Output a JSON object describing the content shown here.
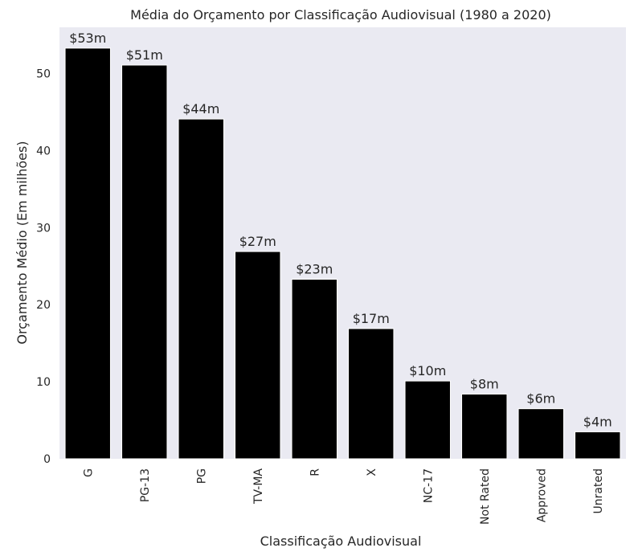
{
  "chart_data": {
    "type": "bar",
    "title": "Média do Orçamento por Classificação Audiovisual (1980 a 2020)",
    "xlabel": "Classificação Audiovisual",
    "ylabel": "Orçamento Médio (Em milhões)",
    "categories": [
      "G",
      "PG-13",
      "PG",
      "TV-MA",
      "R",
      "X",
      "NC-17",
      "Not Rated",
      "Approved",
      "Unrated"
    ],
    "values": [
      53.3,
      51.1,
      44.1,
      26.9,
      23.3,
      16.9,
      10.1,
      8.4,
      6.5,
      3.5
    ],
    "data_labels": [
      "$53m",
      "$51m",
      "$44m",
      "$27m",
      "$23m",
      "$17m",
      "$10m",
      "$8m",
      "$6m",
      "$4m"
    ],
    "yticks": [
      0,
      10,
      20,
      30,
      40,
      50
    ],
    "ylim": [
      0,
      56
    ],
    "grid": false,
    "colors": {
      "bar": "#000000",
      "bar_edge": "#ffffff",
      "background": "#eaeaf2"
    }
  }
}
